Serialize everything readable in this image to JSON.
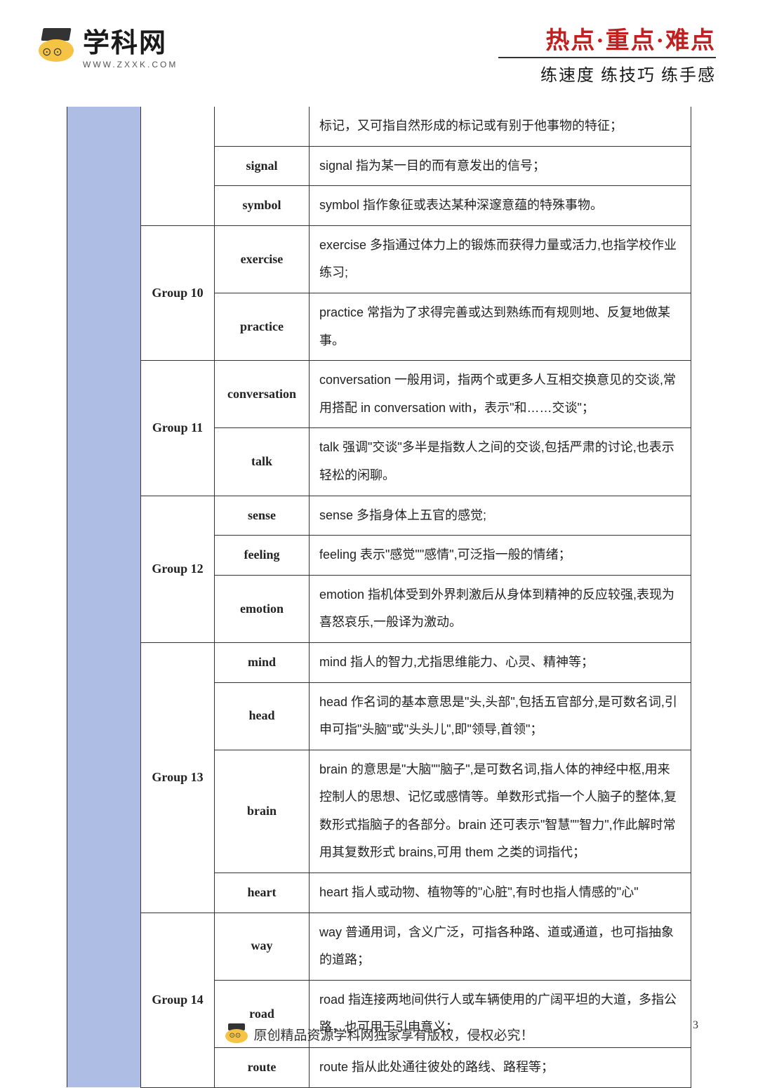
{
  "header": {
    "logo_main": "学科网",
    "logo_sub": "WWW.ZXXK.COM",
    "slogan_top": "热点·重点·难点",
    "slogan_bottom": "练速度  练技巧  练手感"
  },
  "rows": [
    {
      "group": "",
      "word": "",
      "desc": "标记，又可指自然形成的标记或有别于他事物的特征；",
      "group_rowspan": 0,
      "continuation": true
    },
    {
      "group": "",
      "word": "signal",
      "desc": "signal 指为某一目的而有意发出的信号；"
    },
    {
      "group": "",
      "word": "symbol",
      "desc": "symbol 指作象征或表达某种深邃意蕴的特殊事物。"
    },
    {
      "group": "Group 10",
      "word": "exercise",
      "desc": "exercise 多指通过体力上的锻炼而获得力量或活力,也指学校作业练习;",
      "group_rowspan": 2
    },
    {
      "group": "",
      "word": "practice",
      "desc": "practice 常指为了求得完善或达到熟练而有规则地、反复地做某事。"
    },
    {
      "group": "Group 11",
      "word": "conversation",
      "desc": "conversation 一般用词，指两个或更多人互相交换意见的交谈,常用搭配 in conversation with，表示\"和……交谈\"；",
      "group_rowspan": 2
    },
    {
      "group": "",
      "word": "talk",
      "desc": "talk 强调\"交谈\"多半是指数人之间的交谈,包括严肃的讨论,也表示轻松的闲聊。"
    },
    {
      "group": "Group 12",
      "word": "sense",
      "desc": "sense 多指身体上五官的感觉;",
      "group_rowspan": 3
    },
    {
      "group": "",
      "word": "feeling",
      "desc": "feeling 表示\"感觉\"\"感情\",可泛指一般的情绪；"
    },
    {
      "group": "",
      "word": "emotion",
      "desc": "emotion 指机体受到外界刺激后从身体到精神的反应较强,表现为喜怒哀乐,一般译为激动。"
    },
    {
      "group": "Group 13",
      "word": "mind",
      "desc": "mind 指人的智力,尤指思维能力、心灵、精神等；",
      "group_rowspan": 4
    },
    {
      "group": "",
      "word": "head",
      "desc": "head 作名词的基本意思是\"头,头部\",包括五官部分,是可数名词,引申可指\"头脑\"或\"头头儿\",即\"领导,首领\"；"
    },
    {
      "group": "",
      "word": "brain",
      "desc": "brain 的意思是\"大脑\"\"脑子\",是可数名词,指人体的神经中枢,用来控制人的思想、记忆或感情等。单数形式指一个人脑子的整体,复数形式指脑子的各部分。brain 还可表示\"智慧\"\"智力\",作此解时常用其复数形式 brains,可用 them 之类的词指代；"
    },
    {
      "group": "",
      "word": "heart",
      "desc": "heart 指人或动物、植物等的\"心脏\",有时也指人情感的\"心\""
    },
    {
      "group": "Group 14",
      "word": "way",
      "desc": "way 普通用词，含义广泛，可指各种路、道或通道，也可指抽象的道路；",
      "group_rowspan": 3
    },
    {
      "group": "",
      "word": "road",
      "desc": "road 指连接两地间供行人或车辆使用的广阔平坦的大道，多指公路，也可用于引申意义；"
    },
    {
      "group": "",
      "word": "route",
      "desc": "route 指从此处通往彼处的路线、路程等；"
    }
  ],
  "footer": {
    "text": "原创精品资源学科网独家享有版权，侵权必究！",
    "page": "3"
  },
  "colors": {
    "blue_col": "#aebde4",
    "slogan_red": "#c02020"
  }
}
